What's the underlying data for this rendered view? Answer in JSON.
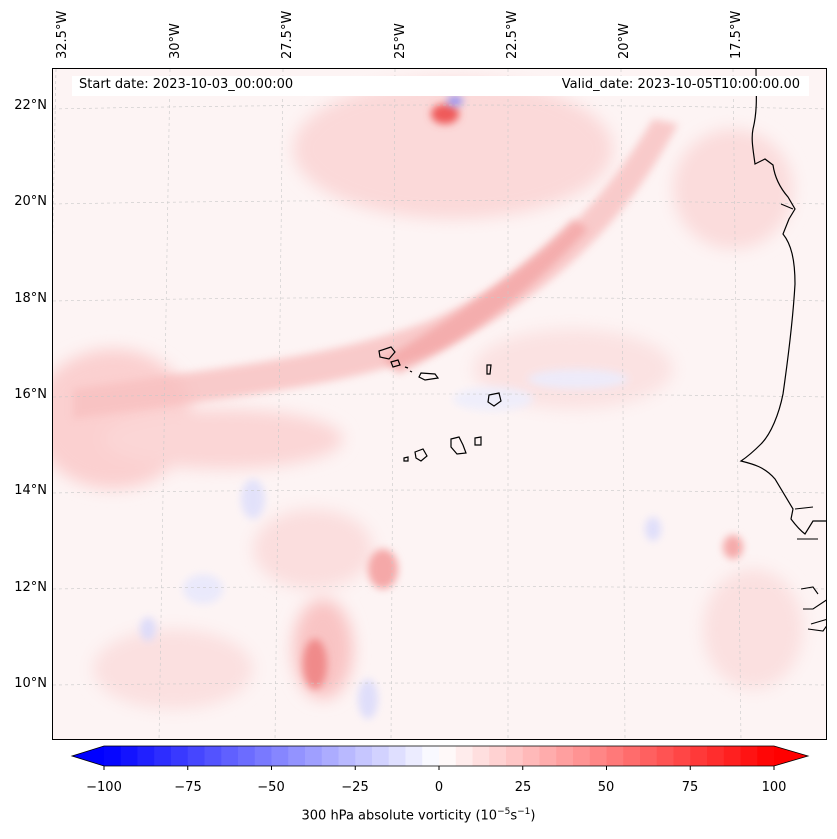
{
  "header": {
    "start_date": "Start date: 2023-10-03_00:00:00",
    "valid_date": "Valid_date: 2023-10-05T10:00:00.00"
  },
  "lat_ticks": [
    "22°N",
    "20°N",
    "18°N",
    "16°N",
    "14°N",
    "12°N",
    "10°N"
  ],
  "lon_ticks": [
    "32.5°W",
    "30°W",
    "27.5°W",
    "25°W",
    "22.5°W",
    "20°W",
    "17.5°W"
  ],
  "colorbar": {
    "ticks": [
      "−100",
      "−75",
      "−50",
      "−25",
      "0",
      "25",
      "50",
      "75",
      "100"
    ],
    "label_main": "300 hPa absolute vorticity (10",
    "label_exp1": "−5",
    "label_mid": "s",
    "label_exp2": "−1",
    "label_end": ")",
    "min": -100,
    "max": 100,
    "negative_color": "#0000ff",
    "positive_color": "#ff0000"
  },
  "map": {
    "variable": "300 hPa absolute vorticity",
    "features": [
      "vorticity-field",
      "cape-verde-islands",
      "west-africa-coastline",
      "graticule"
    ]
  }
}
